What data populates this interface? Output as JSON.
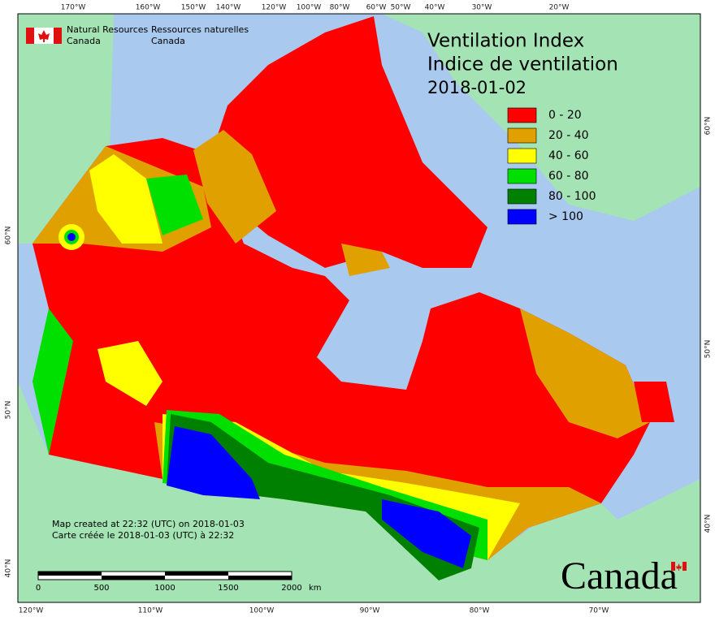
{
  "header": {
    "agency_en": [
      "Natural Resources",
      "Canada"
    ],
    "agency_fr": [
      "Ressources naturelles",
      "Canada"
    ]
  },
  "title": {
    "line1": "Ventilation Index",
    "line2": "Indice de ventilation",
    "date": "2018-01-02"
  },
  "legend": [
    {
      "label": "0 - 20",
      "color": "#ff0000"
    },
    {
      "label": "20 - 40",
      "color": "#e0a000"
    },
    {
      "label": "40 - 60",
      "color": "#ffff00"
    },
    {
      "label": "60 - 80",
      "color": "#00e000"
    },
    {
      "label": "80 - 100",
      "color": "#008000"
    },
    {
      "label": "> 100",
      "color": "#0000ff"
    }
  ],
  "graticule": {
    "top": [
      "170°W",
      "160°W",
      "150°W",
      "140°W",
      "120°W",
      "100°W",
      "80°W",
      "60°W",
      "50°W",
      "40°W",
      "30°W",
      "20°W"
    ],
    "bottom": [
      "120°W",
      "110°W",
      "100°W",
      "90°W",
      "80°W",
      "70°W"
    ],
    "left": [
      "60°N",
      "50°N",
      "40°N"
    ],
    "right": [
      "60°N",
      "50°N",
      "40°N"
    ]
  },
  "scale_bar": {
    "labels": [
      "0",
      "500",
      "1000",
      "1500",
      "2000"
    ],
    "unit": "km"
  },
  "notes": [
    "Map created at 22:32 (UTC) on 2018-01-03",
    "Carte créée le 2018-01-03 (UTC) à 22:32"
  ],
  "wordmark": "Canada"
}
